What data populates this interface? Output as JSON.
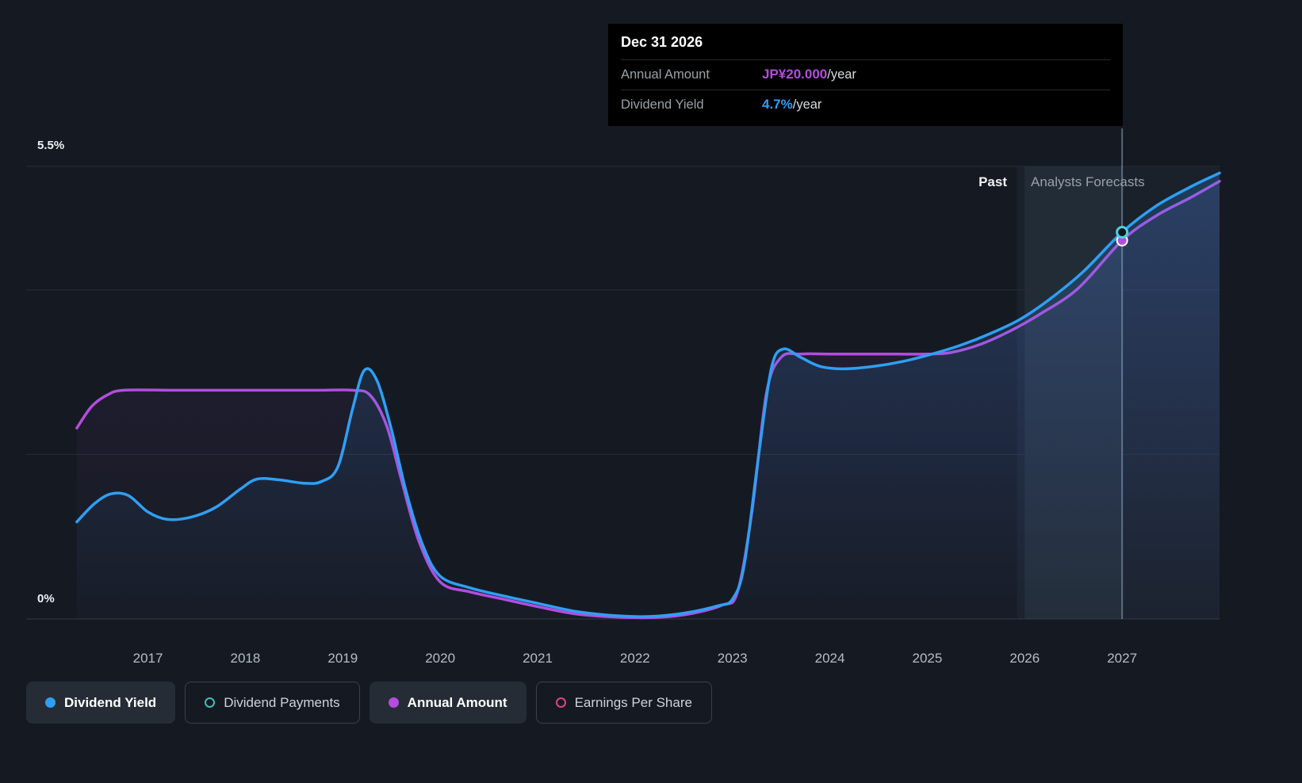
{
  "page": {
    "background": "#151a22"
  },
  "tooltip": {
    "date": "Dec 31 2026",
    "rows": [
      {
        "label": "Annual Amount",
        "value": "JP¥20.000",
        "suffix": "/year",
        "color": "#b44ce0"
      },
      {
        "label": "Dividend Yield",
        "value": "4.7%",
        "suffix": "/year",
        "color": "#2f9ff5"
      }
    ]
  },
  "labels": {
    "past": "Past",
    "forecast": "Analysts Forecasts"
  },
  "legend": {
    "items": [
      {
        "label": "Dividend Yield",
        "color": "#2f9ff5",
        "style": "filled",
        "active": true
      },
      {
        "label": "Dividend Payments",
        "color": "#3fbfb4",
        "style": "outline",
        "active": false
      },
      {
        "label": "Annual Amount",
        "color": "#b44ce0",
        "style": "filled",
        "active": true
      },
      {
        "label": "Earnings Per Share",
        "color": "#e0457f",
        "style": "outline",
        "active": false
      }
    ]
  },
  "chart_data": {
    "type": "line",
    "title": "Dividend Yield history and analysts forecast",
    "x_axis": {
      "ticks": [
        2017,
        2018,
        2019,
        2020,
        2021,
        2022,
        2023,
        2024,
        2025,
        2026,
        2027
      ],
      "range": [
        2015.75,
        2028.0
      ]
    },
    "y_axis": {
      "range": [
        0,
        5.5
      ],
      "gridlines": [
        0,
        2,
        4,
        5.5
      ],
      "label_top": "5.5%",
      "label_bottom": "0%",
      "unit": "%"
    },
    "forecast_start_x": 2025.92,
    "hover": {
      "band": [
        2026.0,
        2027.0
      ],
      "line_x": 2027.0
    },
    "series": [
      {
        "name": "Annual Amount",
        "color": "#b44ce0",
        "fill_opacity": 0.1,
        "marker": {
          "x": 2027.0,
          "y": 4.6,
          "style": "filled"
        },
        "points": [
          [
            2016.27,
            2.32
          ],
          [
            2016.42,
            2.58
          ],
          [
            2016.58,
            2.72
          ],
          [
            2016.75,
            2.78
          ],
          [
            2017.25,
            2.78
          ],
          [
            2017.75,
            2.78
          ],
          [
            2018.25,
            2.78
          ],
          [
            2018.75,
            2.78
          ],
          [
            2019.1,
            2.78
          ],
          [
            2019.28,
            2.72
          ],
          [
            2019.45,
            2.35
          ],
          [
            2019.6,
            1.7
          ],
          [
            2019.78,
            0.95
          ],
          [
            2020.0,
            0.45
          ],
          [
            2020.3,
            0.33
          ],
          [
            2020.65,
            0.24
          ],
          [
            2021.0,
            0.15
          ],
          [
            2021.4,
            0.06
          ],
          [
            2021.85,
            0.02
          ],
          [
            2022.25,
            0.02
          ],
          [
            2022.6,
            0.07
          ],
          [
            2022.9,
            0.17
          ],
          [
            2023.05,
            0.32
          ],
          [
            2023.2,
            1.3
          ],
          [
            2023.35,
            2.75
          ],
          [
            2023.5,
            3.18
          ],
          [
            2023.7,
            3.22
          ],
          [
            2024.0,
            3.22
          ],
          [
            2024.5,
            3.22
          ],
          [
            2025.0,
            3.22
          ],
          [
            2025.25,
            3.24
          ],
          [
            2025.55,
            3.34
          ],
          [
            2025.85,
            3.5
          ],
          [
            2026.15,
            3.7
          ],
          [
            2026.55,
            4.02
          ],
          [
            2027.0,
            4.6
          ],
          [
            2027.35,
            4.9
          ],
          [
            2027.7,
            5.12
          ],
          [
            2028.0,
            5.32
          ]
        ]
      },
      {
        "name": "Dividend Yield",
        "color": "#2f9ff5",
        "fill_opacity": 0.22,
        "marker": {
          "x": 2027.0,
          "y": 4.7,
          "style": "ring",
          "ring_color": "#4dd0e1"
        },
        "points": [
          [
            2016.27,
            1.18
          ],
          [
            2016.45,
            1.4
          ],
          [
            2016.62,
            1.52
          ],
          [
            2016.8,
            1.5
          ],
          [
            2017.0,
            1.3
          ],
          [
            2017.2,
            1.21
          ],
          [
            2017.45,
            1.24
          ],
          [
            2017.7,
            1.36
          ],
          [
            2017.95,
            1.58
          ],
          [
            2018.12,
            1.7
          ],
          [
            2018.35,
            1.69
          ],
          [
            2018.6,
            1.65
          ],
          [
            2018.78,
            1.67
          ],
          [
            2018.95,
            1.85
          ],
          [
            2019.1,
            2.55
          ],
          [
            2019.22,
            3.02
          ],
          [
            2019.35,
            2.9
          ],
          [
            2019.5,
            2.3
          ],
          [
            2019.65,
            1.55
          ],
          [
            2019.82,
            0.9
          ],
          [
            2020.0,
            0.52
          ],
          [
            2020.3,
            0.38
          ],
          [
            2020.65,
            0.28
          ],
          [
            2021.0,
            0.19
          ],
          [
            2021.4,
            0.09
          ],
          [
            2021.8,
            0.04
          ],
          [
            2022.15,
            0.03
          ],
          [
            2022.5,
            0.07
          ],
          [
            2022.85,
            0.16
          ],
          [
            2023.0,
            0.24
          ],
          [
            2023.12,
            0.65
          ],
          [
            2023.27,
            2.0
          ],
          [
            2023.4,
            3.05
          ],
          [
            2023.52,
            3.28
          ],
          [
            2023.7,
            3.18
          ],
          [
            2023.9,
            3.07
          ],
          [
            2024.15,
            3.04
          ],
          [
            2024.45,
            3.07
          ],
          [
            2024.75,
            3.13
          ],
          [
            2025.05,
            3.22
          ],
          [
            2025.35,
            3.33
          ],
          [
            2025.65,
            3.47
          ],
          [
            2025.95,
            3.64
          ],
          [
            2026.25,
            3.88
          ],
          [
            2026.6,
            4.22
          ],
          [
            2027.0,
            4.7
          ],
          [
            2027.35,
            5.02
          ],
          [
            2027.7,
            5.25
          ],
          [
            2028.0,
            5.42
          ]
        ]
      }
    ]
  }
}
